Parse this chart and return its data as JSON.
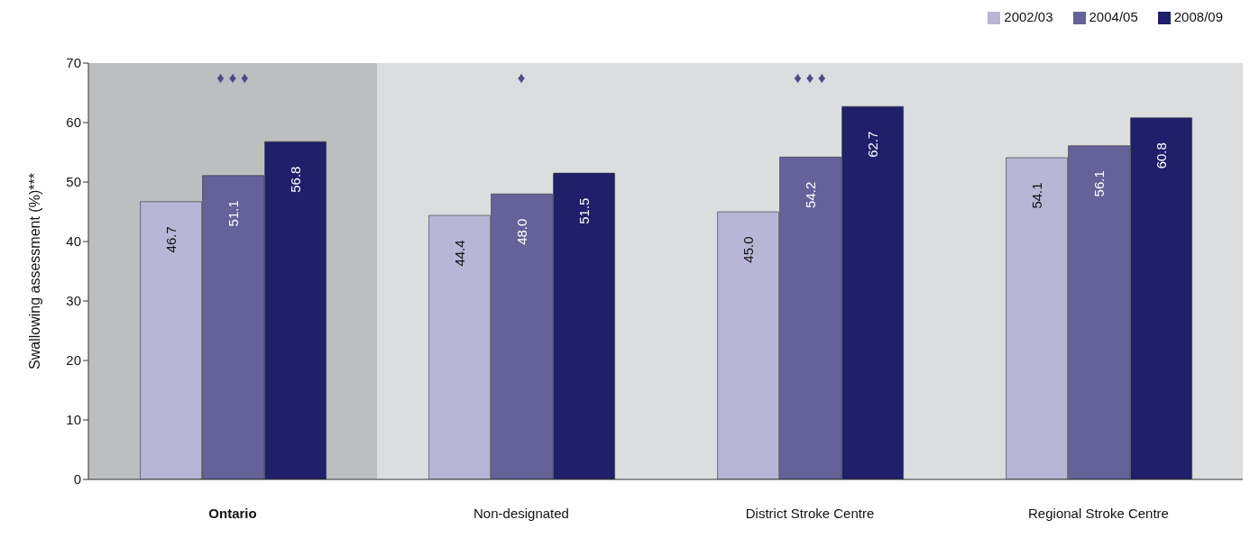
{
  "chart_data": {
    "type": "bar",
    "ylabel": "Swallowing assessment (%)***",
    "categories": [
      "Ontario",
      "Non-designated",
      "District Stroke Centre",
      "Regional Stroke Centre"
    ],
    "series": [
      {
        "name": "2002/03",
        "color": "#b8b5d6",
        "values": [
          46.7,
          44.4,
          45.0,
          54.1
        ],
        "value_labels": [
          "46.7",
          "44.4",
          "45.0",
          "54.1"
        ]
      },
      {
        "name": "2004/05",
        "color": "#656199",
        "values": [
          51.1,
          48.0,
          54.2,
          56.1
        ],
        "value_labels": [
          "51.1",
          "48.0",
          "54.2",
          "56.1"
        ]
      },
      {
        "name": "2008/09",
        "color": "#1f1f6b",
        "values": [
          56.8,
          51.5,
          62.7,
          60.8
        ],
        "value_labels": [
          "56.8",
          "51.5",
          "62.7",
          "60.8"
        ]
      }
    ],
    "ylim": [
      0,
      70
    ],
    "yticks": [
      0,
      10,
      20,
      30,
      40,
      50,
      60,
      70
    ],
    "grid": false,
    "legend": "top right",
    "bands": [
      {
        "axis": "x",
        "from": "Ontario",
        "to": "Ontario",
        "color": "#bdbebf"
      }
    ],
    "annotations": [
      "♦ ♦ ♦",
      "♦",
      "♦ ♦ ♦"
    ]
  }
}
